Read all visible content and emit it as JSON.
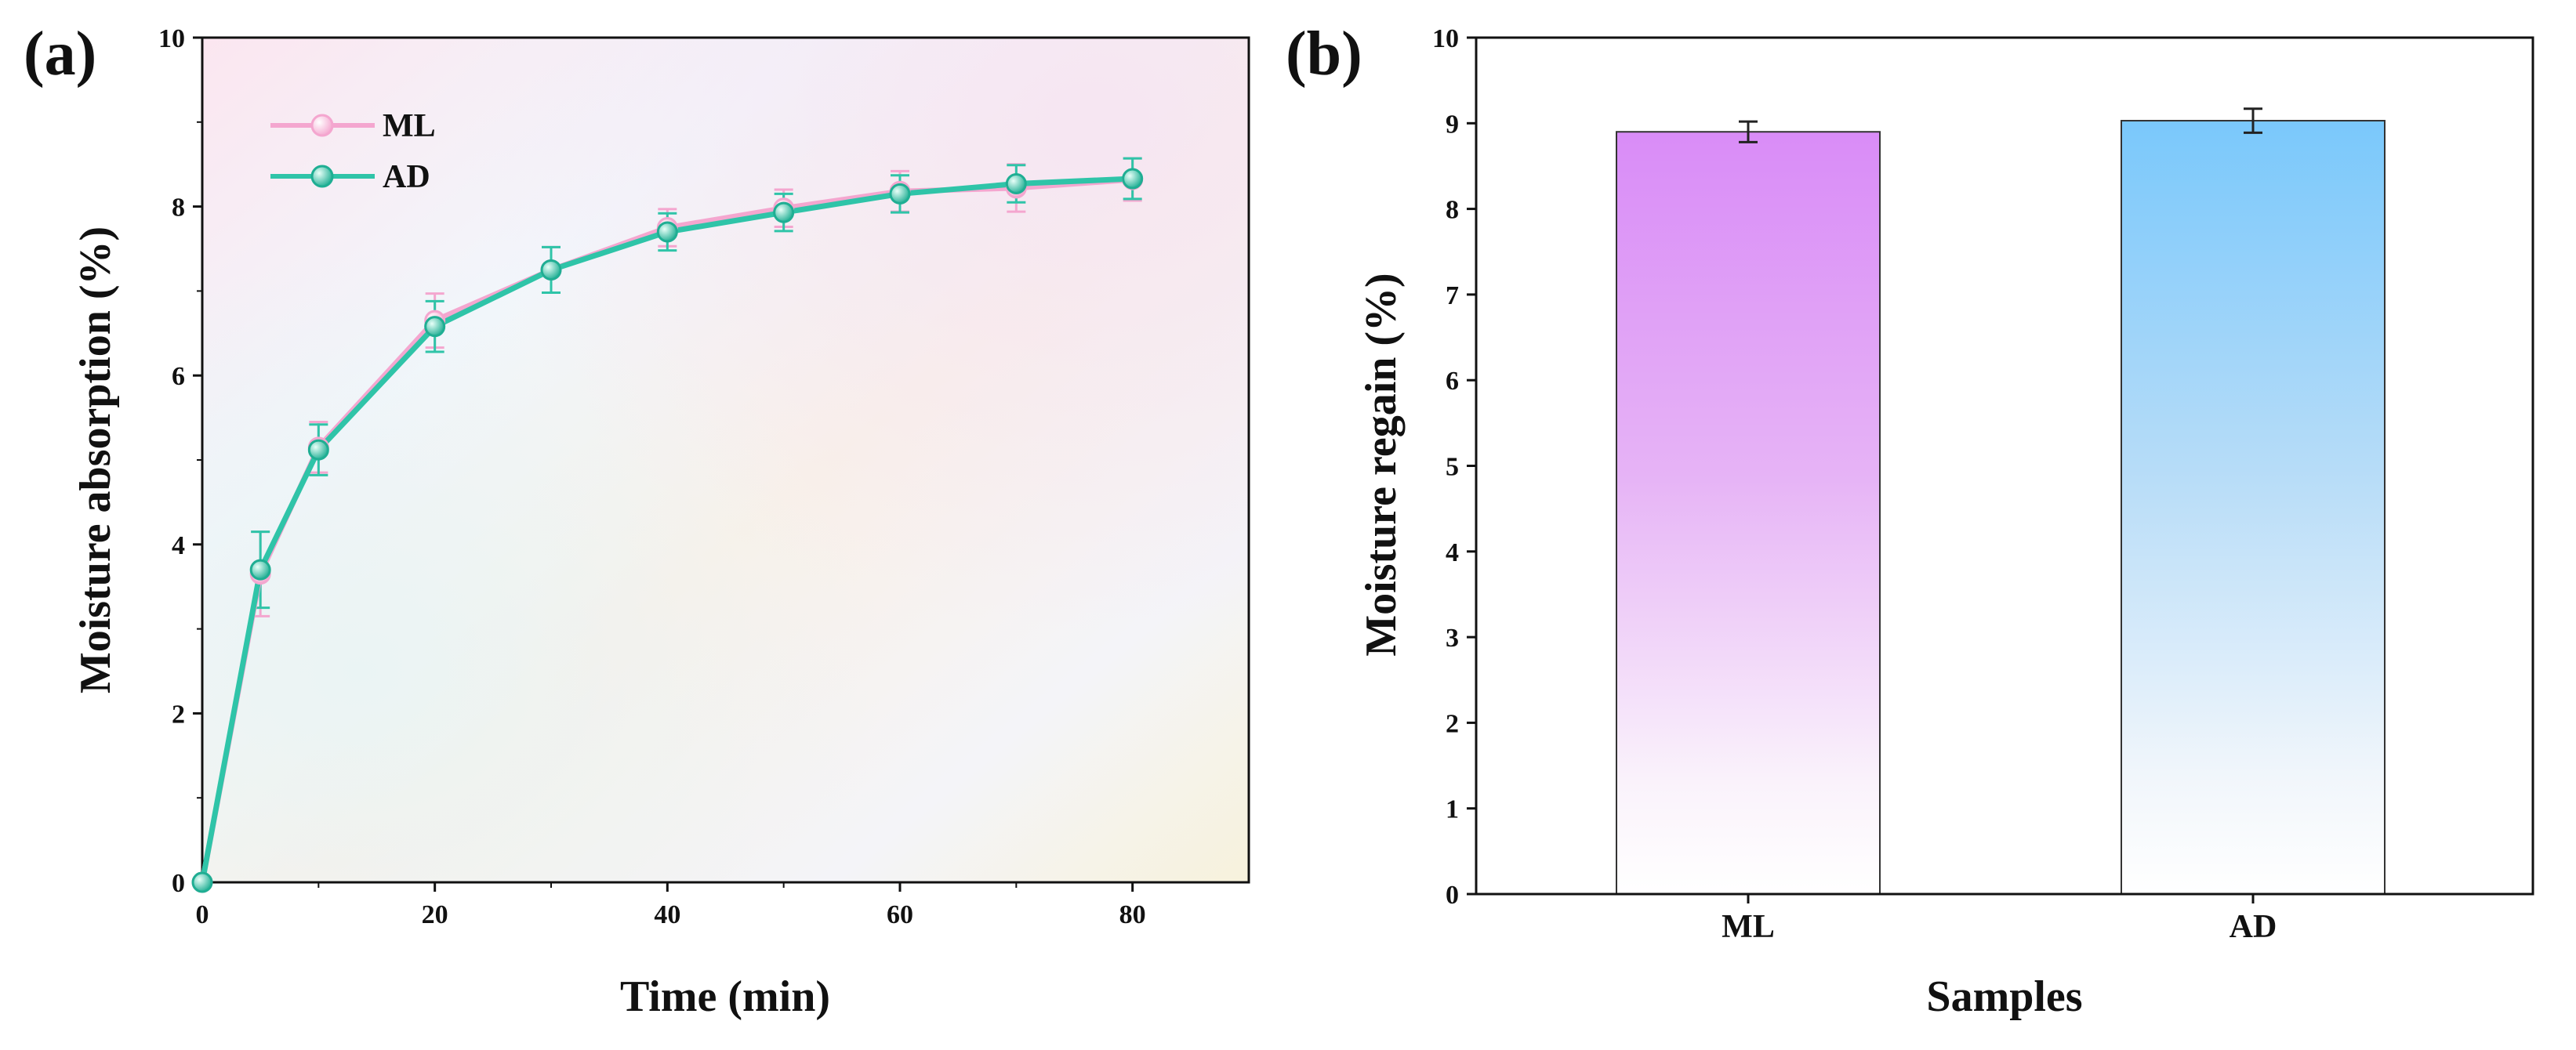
{
  "colors": {
    "ml_line": "#f4a6cf",
    "ad_line": "#2fc4a8",
    "ml_bar_top": "#d98cf7",
    "ad_bar_top": "#7ac8fb",
    "axis": "#111111",
    "errbar": "#222222"
  },
  "chart_data": [
    {
      "type": "line",
      "panel_label": "(a)",
      "xlabel": "Time (min)",
      "ylabel": "Moisture absorption (%)",
      "xlim": [
        0,
        90
      ],
      "ylim": [
        0,
        10
      ],
      "xticks": [
        "0",
        "20",
        "40",
        "60",
        "80"
      ],
      "yticks": [
        "0",
        "2",
        "4",
        "6",
        "8",
        "10"
      ],
      "legend_position": "top-left",
      "x": [
        0,
        5,
        10,
        20,
        30,
        40,
        50,
        60,
        70,
        80
      ],
      "series": [
        {
          "name": "ML",
          "values": [
            0,
            3.65,
            5.15,
            6.65,
            7.25,
            7.75,
            7.98,
            8.18,
            8.22,
            8.32
          ],
          "errors": [
            0,
            0.5,
            0.3,
            0.32,
            0.27,
            0.22,
            0.22,
            0.24,
            0.28,
            0.25
          ]
        },
        {
          "name": "AD",
          "values": [
            0,
            3.7,
            5.12,
            6.58,
            7.25,
            7.7,
            7.93,
            8.15,
            8.27,
            8.33
          ],
          "errors": [
            0,
            0.45,
            0.3,
            0.3,
            0.27,
            0.22,
            0.22,
            0.22,
            0.22,
            0.24
          ]
        }
      ]
    },
    {
      "type": "bar",
      "panel_label": "(b)",
      "xlabel": "Samples",
      "ylabel": "Moisture regain (%)",
      "ylim": [
        0,
        10
      ],
      "yticks": [
        "0",
        "1",
        "2",
        "3",
        "4",
        "5",
        "6",
        "7",
        "8",
        "9",
        "10"
      ],
      "categories": [
        "ML",
        "AD"
      ],
      "values": [
        8.9,
        9.03
      ],
      "errors": [
        0.12,
        0.14
      ]
    }
  ]
}
